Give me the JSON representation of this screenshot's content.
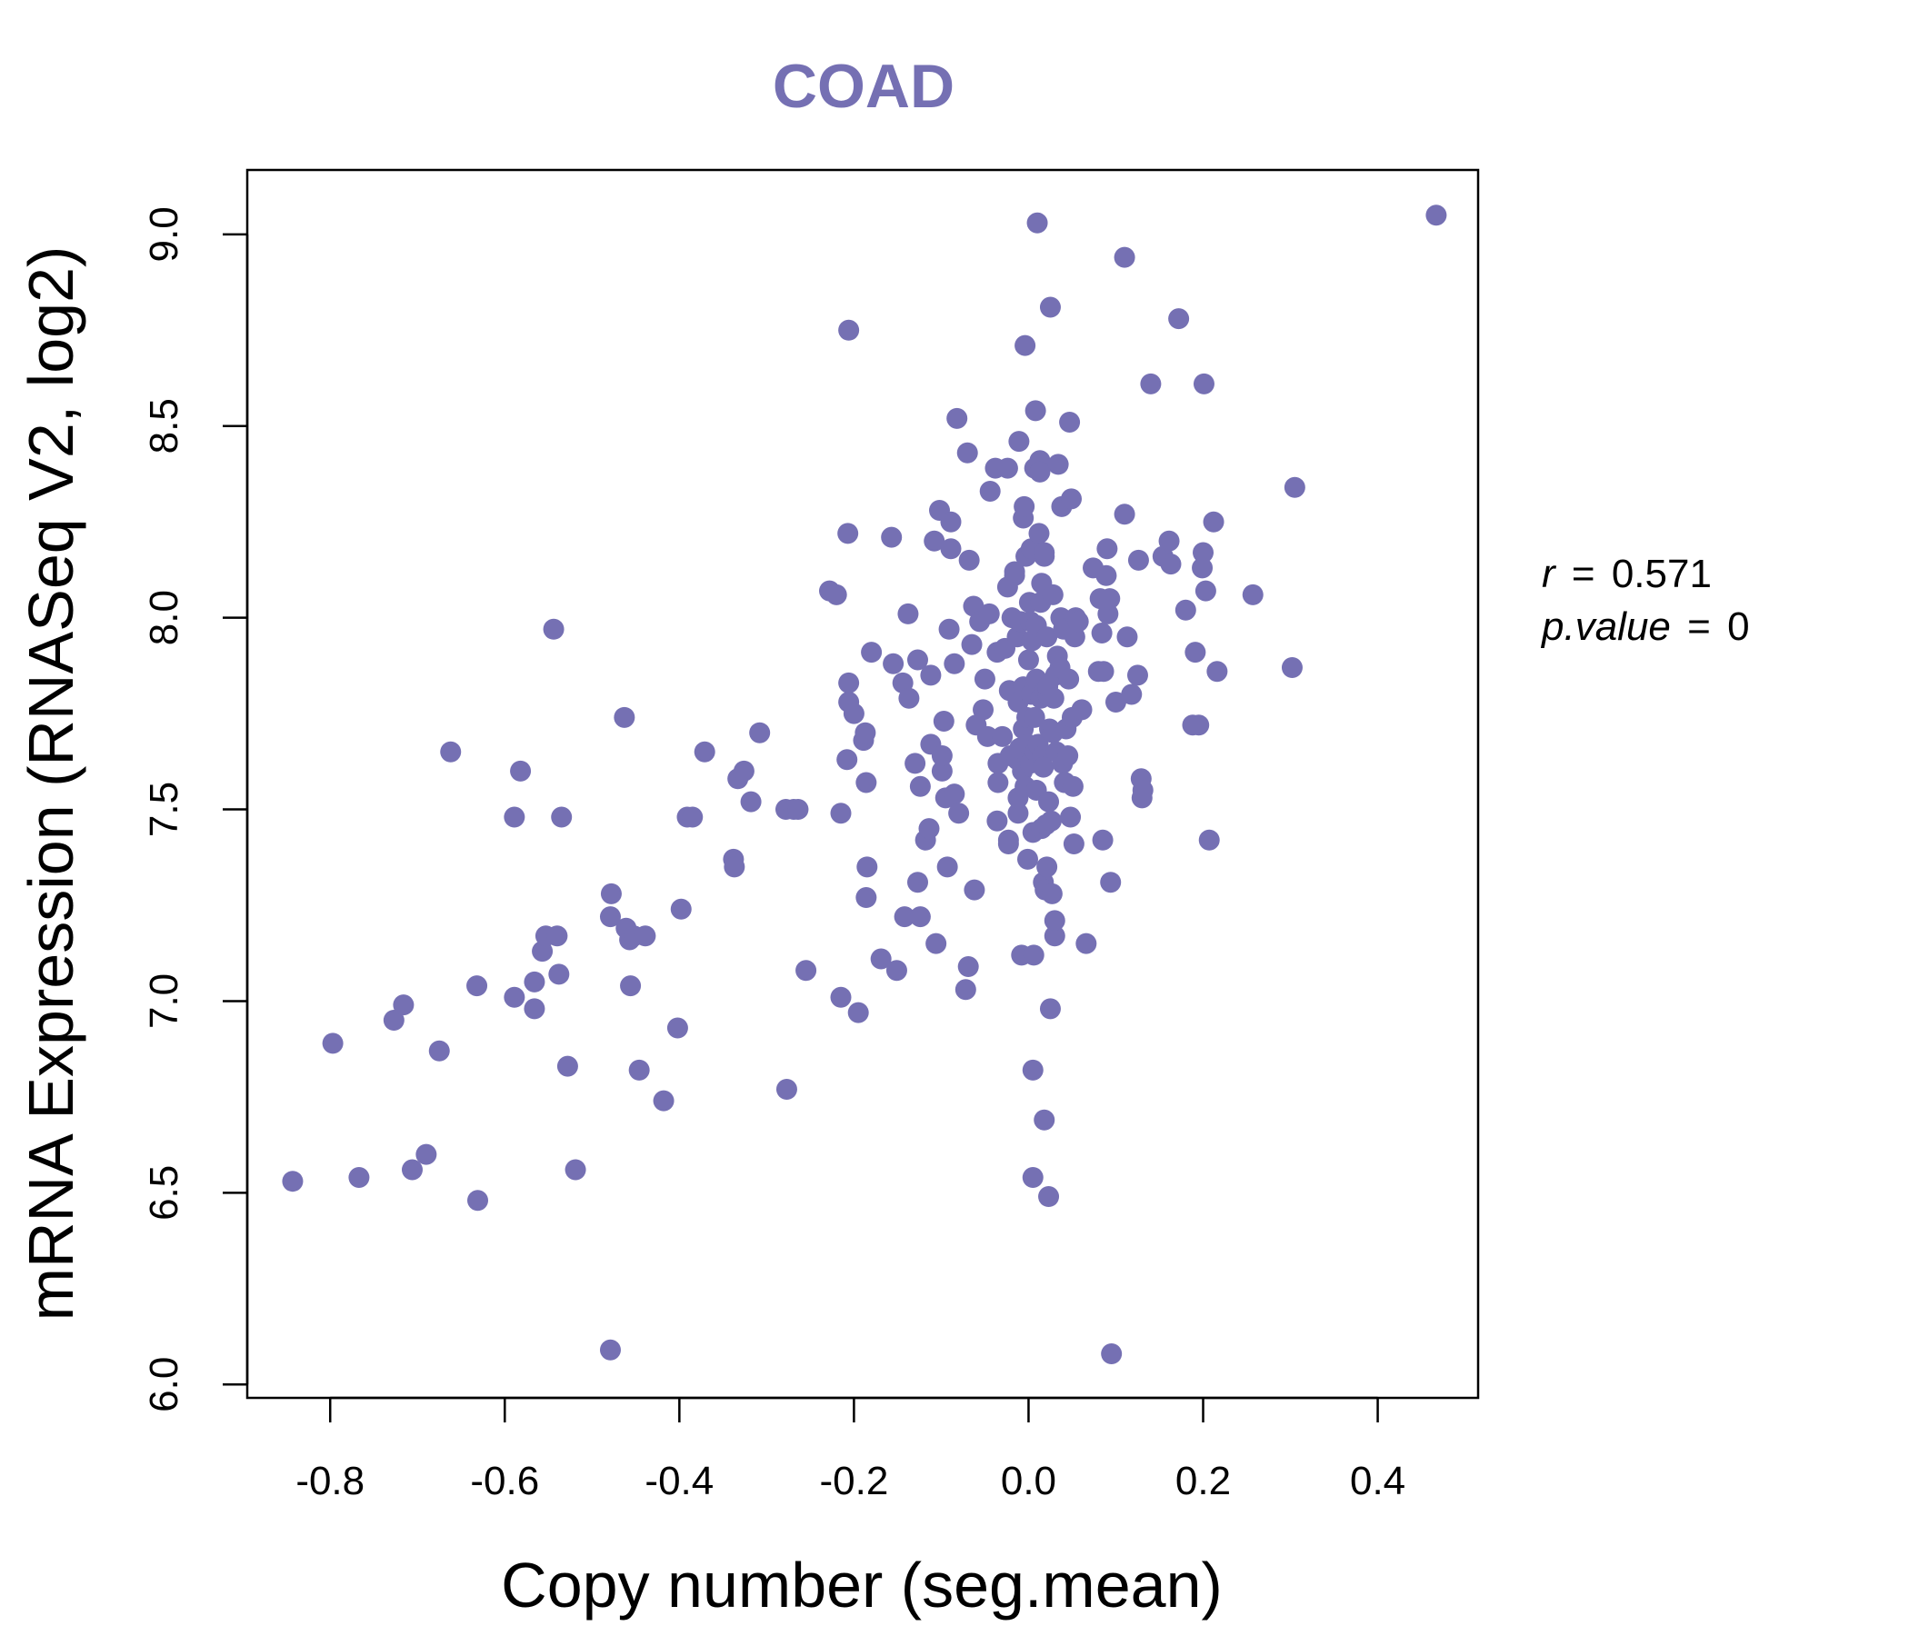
{
  "chart_data": {
    "type": "scatter",
    "title": "COAD",
    "xlabel": "Copy number (seg.mean)",
    "ylabel": "mRNA Expression (RNASeq V2, log2)",
    "xlim": [
      -0.895,
      0.515
    ],
    "ylim": [
      5.965,
      9.168
    ],
    "xticks": [
      -0.8,
      -0.6,
      -0.4,
      -0.2,
      0.0,
      0.2,
      0.4
    ],
    "xtick_labels": [
      "-0.8",
      "-0.6",
      "-0.4",
      "-0.2",
      "0.0",
      "0.2",
      "0.4"
    ],
    "yticks": [
      6.0,
      6.5,
      7.0,
      7.5,
      8.0,
      8.5,
      9.0
    ],
    "ytick_labels": [
      "6.0",
      "6.5",
      "7.0",
      "7.5",
      "8.0",
      "8.5",
      "9.0"
    ],
    "point_color": "#7570b3",
    "annotation": {
      "r_label": "r",
      "r_value": "0.571",
      "p_label": "p.value",
      "p_value": "0",
      "eq": "="
    },
    "points": [
      [
        -0.843,
        6.53
      ],
      [
        -0.797,
        6.89
      ],
      [
        -0.767,
        6.54
      ],
      [
        -0.727,
        6.95
      ],
      [
        -0.716,
        6.99
      ],
      [
        -0.706,
        6.56
      ],
      [
        -0.69,
        6.6
      ],
      [
        -0.675,
        6.87
      ],
      [
        -0.662,
        7.65
      ],
      [
        -0.631,
        6.48
      ],
      [
        -0.632,
        7.04
      ],
      [
        -0.589,
        7.48
      ],
      [
        -0.589,
        7.01
      ],
      [
        -0.582,
        7.6
      ],
      [
        -0.566,
        7.05
      ],
      [
        -0.566,
        6.98
      ],
      [
        -0.557,
        7.13
      ],
      [
        -0.553,
        7.17
      ],
      [
        -0.544,
        7.97
      ],
      [
        -0.54,
        7.17
      ],
      [
        -0.538,
        7.07
      ],
      [
        -0.535,
        7.48
      ],
      [
        -0.528,
        6.83
      ],
      [
        -0.519,
        6.56
      ],
      [
        -0.479,
        6.09
      ],
      [
        -0.478,
        7.28
      ],
      [
        -0.479,
        7.22
      ],
      [
        -0.463,
        7.74
      ],
      [
        -0.461,
        7.19
      ],
      [
        -0.457,
        7.16
      ],
      [
        -0.456,
        7.04
      ],
      [
        -0.452,
        7.17
      ],
      [
        -0.446,
        6.82
      ],
      [
        -0.439,
        7.17
      ],
      [
        -0.418,
        6.74
      ],
      [
        -0.402,
        6.93
      ],
      [
        -0.398,
        7.24
      ],
      [
        -0.391,
        7.48
      ],
      [
        -0.385,
        7.48
      ],
      [
        -0.371,
        7.65
      ],
      [
        -0.338,
        7.37
      ],
      [
        -0.337,
        7.35
      ],
      [
        -0.333,
        7.58
      ],
      [
        -0.326,
        7.6
      ],
      [
        -0.318,
        7.52
      ],
      [
        -0.308,
        7.7
      ],
      [
        -0.278,
        7.5
      ],
      [
        -0.277,
        6.77
      ],
      [
        -0.269,
        7.5
      ],
      [
        -0.264,
        7.5
      ],
      [
        -0.255,
        7.08
      ],
      [
        -0.228,
        8.07
      ],
      [
        -0.22,
        8.06
      ],
      [
        -0.215,
        7.49
      ],
      [
        -0.215,
        7.01
      ],
      [
        -0.208,
        7.63
      ],
      [
        -0.207,
        8.22
      ],
      [
        -0.206,
        8.75
      ],
      [
        -0.206,
        7.83
      ],
      [
        -0.206,
        7.78
      ],
      [
        -0.2,
        7.75
      ],
      [
        -0.195,
        6.97
      ],
      [
        -0.189,
        7.68
      ],
      [
        -0.187,
        7.7
      ],
      [
        -0.186,
        7.57
      ],
      [
        -0.186,
        7.27
      ],
      [
        -0.185,
        7.35
      ],
      [
        -0.18,
        7.91
      ],
      [
        -0.169,
        7.11
      ],
      [
        -0.157,
        8.21
      ],
      [
        -0.155,
        7.88
      ],
      [
        -0.151,
        7.08
      ],
      [
        -0.144,
        7.83
      ],
      [
        -0.142,
        7.22
      ],
      [
        -0.138,
        8.01
      ],
      [
        -0.137,
        7.79
      ],
      [
        -0.13,
        7.62
      ],
      [
        -0.127,
        7.89
      ],
      [
        -0.127,
        7.31
      ],
      [
        -0.124,
        7.22
      ],
      [
        -0.124,
        7.56
      ],
      [
        -0.118,
        7.42
      ],
      [
        -0.114,
        7.45
      ],
      [
        -0.112,
        7.85
      ],
      [
        -0.112,
        7.67
      ],
      [
        -0.108,
        8.2
      ],
      [
        -0.106,
        7.15
      ],
      [
        -0.102,
        8.28
      ],
      [
        -0.099,
        7.6
      ],
      [
        -0.099,
        7.64
      ],
      [
        -0.097,
        7.73
      ],
      [
        -0.095,
        7.53
      ],
      [
        -0.093,
        7.35
      ],
      [
        -0.091,
        7.97
      ],
      [
        -0.089,
        8.18
      ],
      [
        -0.089,
        8.25
      ],
      [
        -0.085,
        7.88
      ],
      [
        -0.085,
        7.54
      ],
      [
        -0.082,
        8.52
      ],
      [
        -0.08,
        7.49
      ],
      [
        -0.072,
        7.03
      ],
      [
        -0.07,
        8.43
      ],
      [
        -0.069,
        7.09
      ],
      [
        -0.068,
        8.15
      ],
      [
        -0.065,
        7.93
      ],
      [
        -0.063,
        8.03
      ],
      [
        -0.062,
        7.29
      ],
      [
        -0.06,
        7.72
      ],
      [
        -0.056,
        7.99
      ],
      [
        -0.052,
        7.76
      ],
      [
        -0.05,
        7.84
      ],
      [
        -0.047,
        7.69
      ],
      [
        -0.045,
        8.01
      ],
      [
        -0.044,
        8.33
      ],
      [
        -0.038,
        8.39
      ],
      [
        -0.036,
        7.91
      ],
      [
        -0.036,
        7.47
      ],
      [
        -0.035,
        7.57
      ],
      [
        -0.035,
        7.62
      ],
      [
        -0.03,
        7.69
      ],
      [
        -0.027,
        7.92
      ],
      [
        -0.024,
        8.39
      ],
      [
        -0.024,
        8.08
      ],
      [
        -0.023,
        7.42
      ],
      [
        -0.023,
        7.41
      ],
      [
        -0.022,
        7.81
      ],
      [
        -0.021,
        7.64
      ],
      [
        -0.019,
        8.0
      ],
      [
        -0.016,
        8.11
      ],
      [
        -0.016,
        8.12
      ],
      [
        -0.013,
        7.63
      ],
      [
        -0.013,
        7.95
      ],
      [
        -0.012,
        7.49
      ],
      [
        -0.012,
        7.53
      ],
      [
        -0.012,
        7.78
      ],
      [
        -0.011,
        8.46
      ],
      [
        -0.01,
        7.66
      ],
      [
        -0.009,
        7.99
      ],
      [
        -0.008,
        7.12
      ],
      [
        -0.007,
        7.6
      ],
      [
        -0.006,
        7.71
      ],
      [
        -0.006,
        7.82
      ],
      [
        -0.006,
        8.26
      ],
      [
        -0.005,
        8.29
      ],
      [
        -0.004,
        8.71
      ],
      [
        -0.004,
        7.56
      ],
      [
        -0.003,
        8.16
      ],
      [
        -0.002,
        7.74
      ],
      [
        -0.001,
        7.67
      ],
      [
        -0.001,
        7.37
      ],
      [
        0.0,
        7.89
      ],
      [
        0.001,
        8.04
      ],
      [
        0.002,
        7.62
      ],
      [
        0.002,
        7.99
      ],
      [
        0.003,
        7.8
      ],
      [
        0.003,
        8.18
      ],
      [
        0.004,
        7.94
      ],
      [
        0.005,
        7.44
      ],
      [
        0.005,
        6.82
      ],
      [
        0.005,
        6.54
      ],
      [
        0.006,
        7.12
      ],
      [
        0.007,
        7.74
      ],
      [
        0.007,
        8.39
      ],
      [
        0.008,
        8.54
      ],
      [
        0.008,
        7.65
      ],
      [
        0.009,
        7.55
      ],
      [
        0.009,
        7.84
      ],
      [
        0.009,
        7.98
      ],
      [
        0.01,
        9.03
      ],
      [
        0.011,
        7.67
      ],
      [
        0.012,
        8.22
      ],
      [
        0.013,
        8.41
      ],
      [
        0.013,
        8.38
      ],
      [
        0.014,
        7.79
      ],
      [
        0.014,
        8.04
      ],
      [
        0.015,
        8.09
      ],
      [
        0.015,
        7.45
      ],
      [
        0.016,
        7.64
      ],
      [
        0.017,
        7.31
      ],
      [
        0.017,
        7.61
      ],
      [
        0.018,
        8.16
      ],
      [
        0.018,
        8.17
      ],
      [
        0.018,
        6.69
      ],
      [
        0.019,
        7.29
      ],
      [
        0.019,
        7.81
      ],
      [
        0.02,
        7.46
      ],
      [
        0.021,
        7.95
      ],
      [
        0.021,
        7.35
      ],
      [
        0.022,
        7.8
      ],
      [
        0.022,
        7.82
      ],
      [
        0.023,
        6.49
      ],
      [
        0.023,
        7.52
      ],
      [
        0.024,
        7.71
      ],
      [
        0.025,
        8.81
      ],
      [
        0.025,
        6.98
      ],
      [
        0.026,
        7.47
      ],
      [
        0.027,
        7.28
      ],
      [
        0.028,
        8.06
      ],
      [
        0.028,
        7.7
      ],
      [
        0.029,
        7.79
      ],
      [
        0.03,
        7.17
      ],
      [
        0.03,
        7.21
      ],
      [
        0.031,
        7.85
      ],
      [
        0.032,
        7.65
      ],
      [
        0.033,
        7.9
      ],
      [
        0.034,
        8.4
      ],
      [
        0.036,
        7.87
      ],
      [
        0.037,
        8.0
      ],
      [
        0.038,
        8.29
      ],
      [
        0.039,
        7.62
      ],
      [
        0.04,
        7.97
      ],
      [
        0.041,
        7.57
      ],
      [
        0.042,
        7.57
      ],
      [
        0.043,
        7.71
      ],
      [
        0.045,
        7.64
      ],
      [
        0.046,
        7.84
      ],
      [
        0.047,
        8.51
      ],
      [
        0.048,
        7.48
      ],
      [
        0.049,
        8.31
      ],
      [
        0.05,
        7.74
      ],
      [
        0.051,
        7.56
      ],
      [
        0.052,
        7.41
      ],
      [
        0.053,
        7.95
      ],
      [
        0.054,
        8.0
      ],
      [
        0.057,
        7.99
      ],
      [
        0.061,
        7.76
      ],
      [
        0.066,
        7.15
      ],
      [
        0.074,
        8.13
      ],
      [
        0.08,
        7.86
      ],
      [
        0.082,
        8.05
      ],
      [
        0.084,
        7.96
      ],
      [
        0.085,
        7.42
      ],
      [
        0.086,
        7.86
      ],
      [
        0.089,
        8.11
      ],
      [
        0.09,
        8.18
      ],
      [
        0.091,
        8.01
      ],
      [
        0.093,
        8.05
      ],
      [
        0.094,
        7.31
      ],
      [
        0.095,
        6.08
      ],
      [
        0.1,
        7.78
      ],
      [
        0.11,
        8.27
      ],
      [
        0.11,
        8.94
      ],
      [
        0.113,
        7.95
      ],
      [
        0.118,
        7.8
      ],
      [
        0.125,
        7.85
      ],
      [
        0.126,
        8.15
      ],
      [
        0.129,
        7.58
      ],
      [
        0.13,
        7.53
      ],
      [
        0.131,
        7.55
      ],
      [
        0.14,
        8.61
      ],
      [
        0.154,
        8.16
      ],
      [
        0.161,
        8.2
      ],
      [
        0.163,
        8.14
      ],
      [
        0.172,
        8.78
      ],
      [
        0.18,
        8.02
      ],
      [
        0.188,
        7.72
      ],
      [
        0.191,
        7.91
      ],
      [
        0.195,
        7.72
      ],
      [
        0.199,
        8.13
      ],
      [
        0.2,
        8.17
      ],
      [
        0.201,
        8.61
      ],
      [
        0.203,
        8.07
      ],
      [
        0.207,
        7.42
      ],
      [
        0.212,
        8.25
      ],
      [
        0.216,
        7.86
      ],
      [
        0.257,
        8.06
      ],
      [
        0.302,
        7.87
      ],
      [
        0.305,
        8.34
      ],
      [
        0.467,
        9.05
      ]
    ]
  }
}
